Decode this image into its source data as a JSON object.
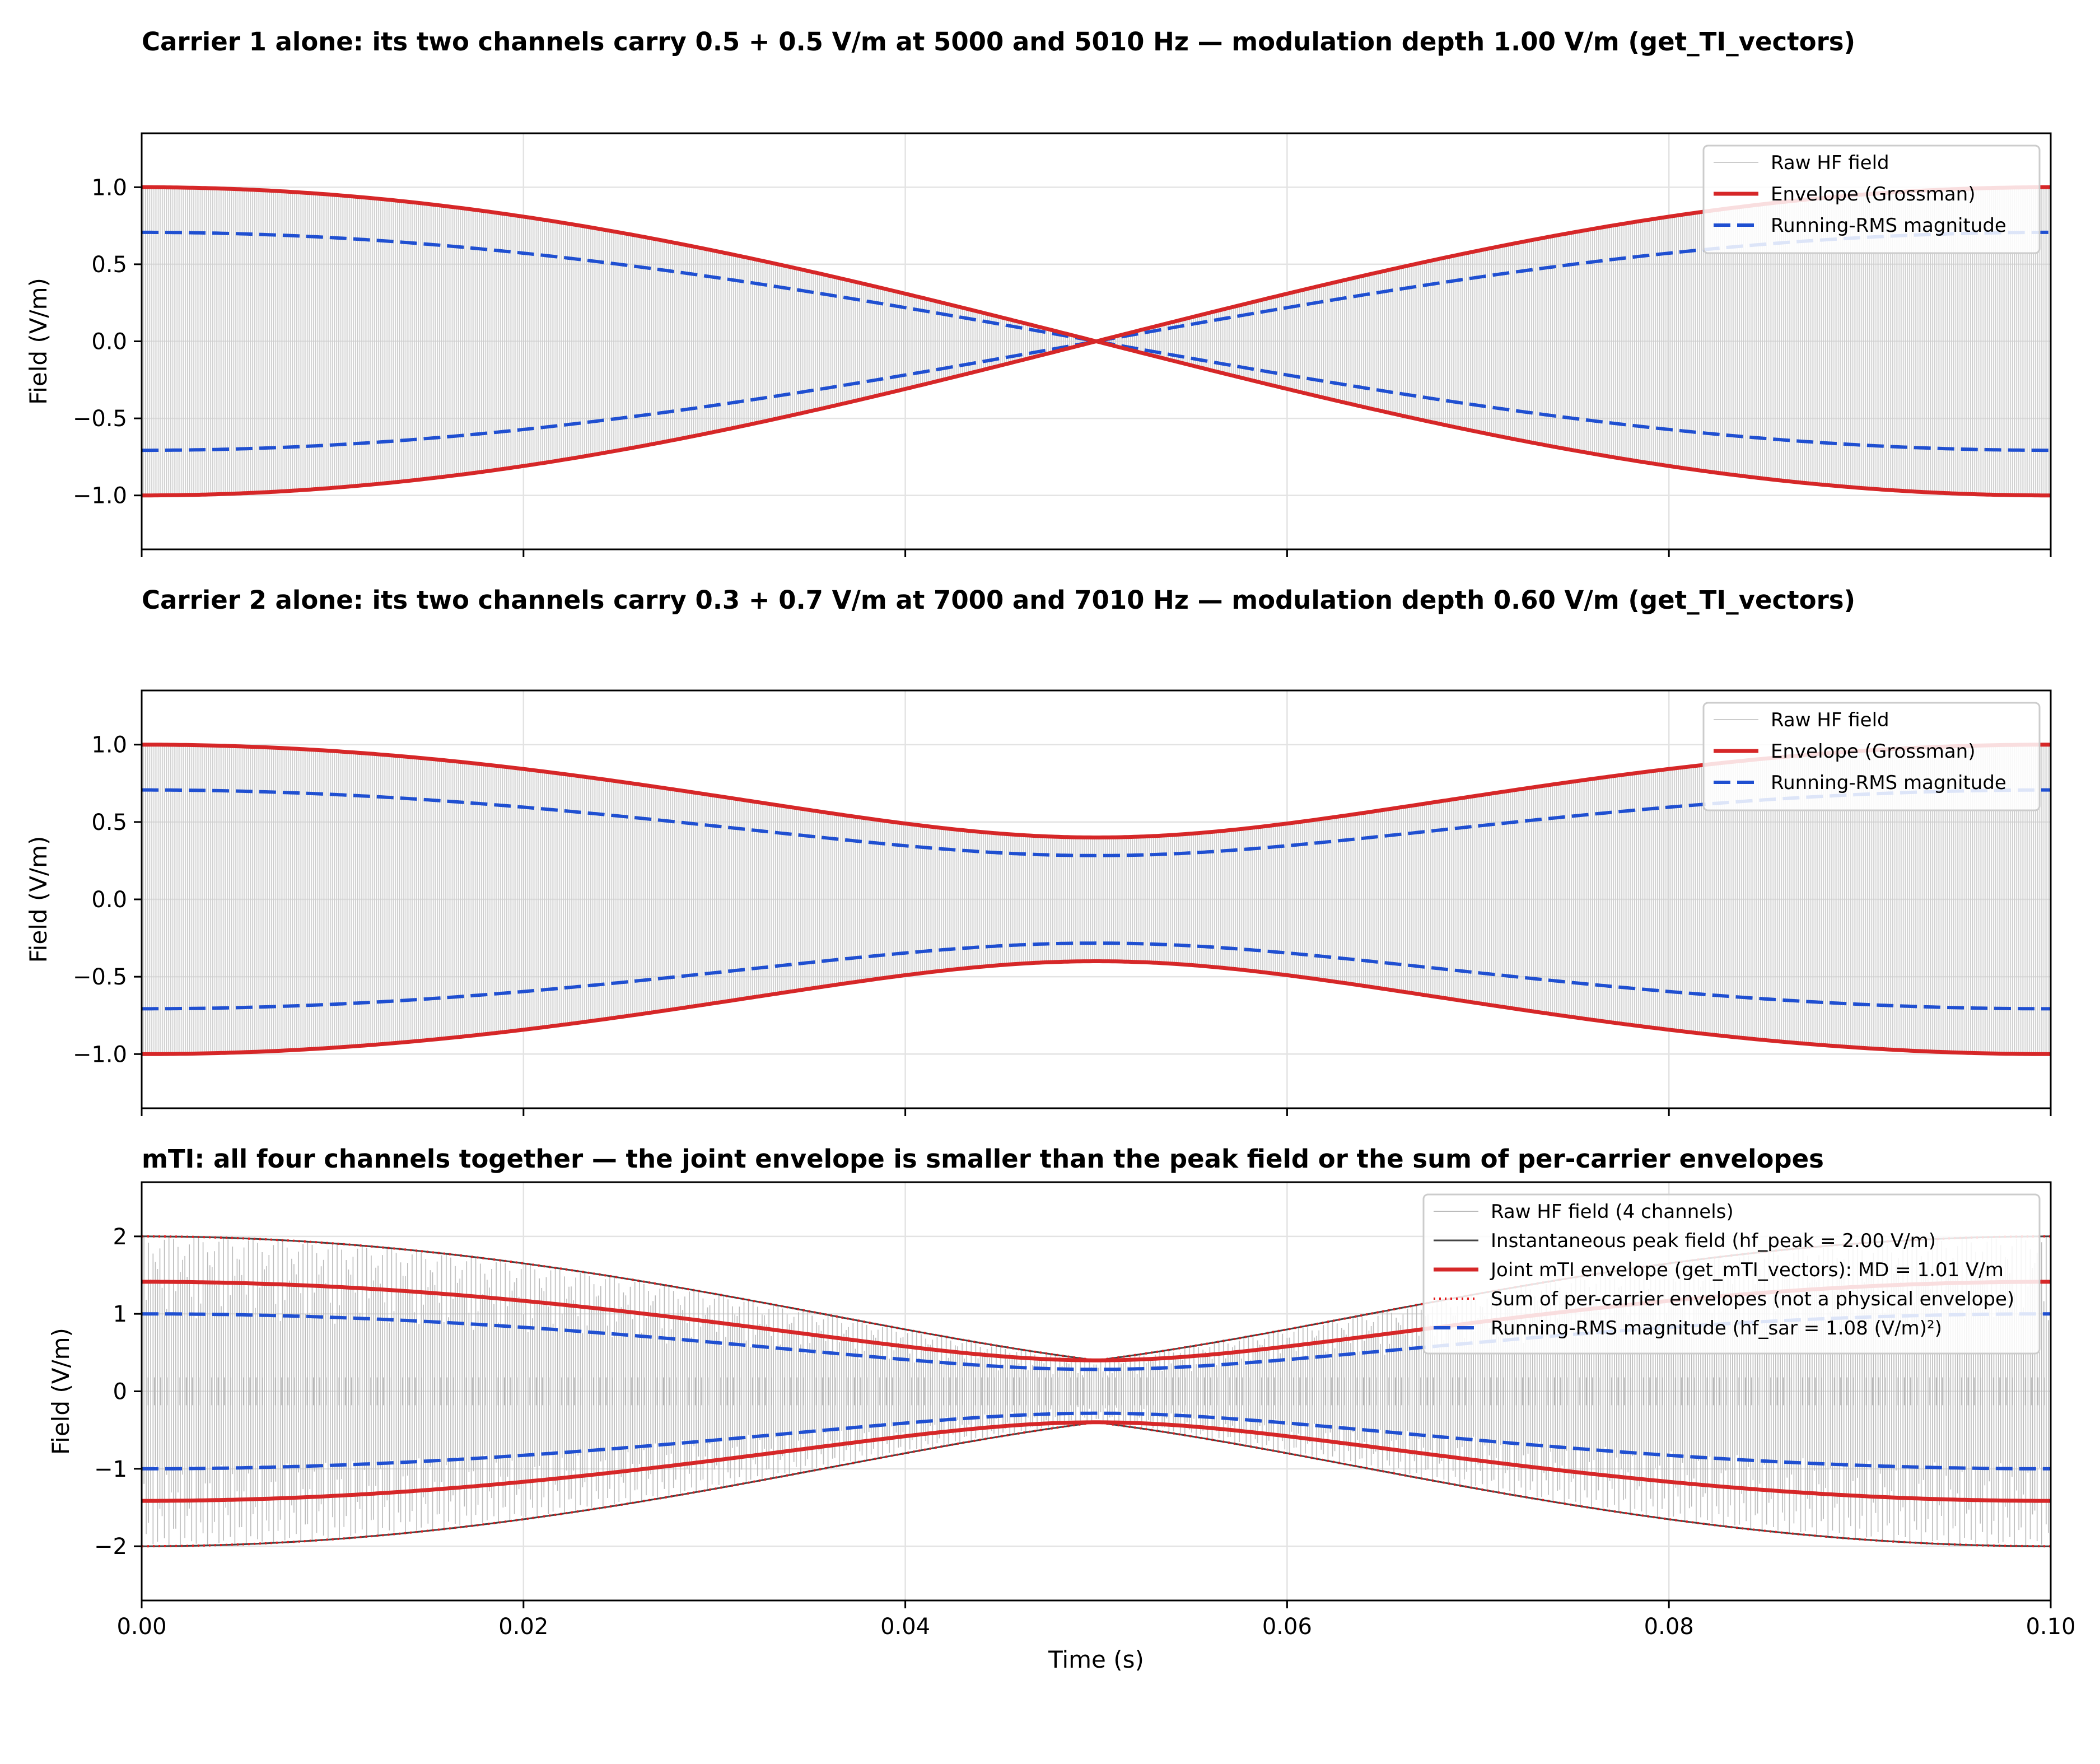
{
  "chart_data": [
    {
      "type": "line",
      "title": "Carrier 1 alone: its two channels carry 0.5 + 0.5 V/m at 5000 and 5010 Hz — modulation depth 1.00 V/m (get_TI_vectors)",
      "xlabel": "",
      "ylabel": "Field (V/m)",
      "xlim": [
        0.0,
        0.1
      ],
      "ylim": [
        -1.35,
        1.35
      ],
      "xticks": [
        0.0,
        0.02,
        0.04,
        0.06,
        0.08,
        0.1
      ],
      "yticks": [
        -1.0,
        -0.5,
        0.0,
        0.5,
        1.0
      ],
      "ytick_labels": [
        "−1.0",
        "−0.5",
        "0.0",
        "0.5",
        "1.0"
      ],
      "grid": true,
      "legend_position": "top-right",
      "carriers": [
        {
          "amplitudes": [
            0.5,
            0.5
          ],
          "frequencies": [
            5000,
            5010
          ]
        }
      ],
      "series": [
        {
          "name": "Raw HF field",
          "kind": "raw",
          "color": "#cccccc"
        },
        {
          "name": "Envelope (Grossman)",
          "kind": "envelope",
          "color": "#d62728"
        },
        {
          "name": "Running-RMS magnitude",
          "kind": "rms",
          "color": "#1f4fd1"
        }
      ]
    },
    {
      "type": "line",
      "title": "Carrier 2 alone: its two channels carry 0.3 + 0.7 V/m at 7000 and 7010 Hz — modulation depth 0.60 V/m (get_TI_vectors)",
      "xlabel": "",
      "ylabel": "Field (V/m)",
      "xlim": [
        0.0,
        0.1
      ],
      "ylim": [
        -1.35,
        1.35
      ],
      "xticks": [
        0.0,
        0.02,
        0.04,
        0.06,
        0.08,
        0.1
      ],
      "yticks": [
        -1.0,
        -0.5,
        0.0,
        0.5,
        1.0
      ],
      "ytick_labels": [
        "−1.0",
        "−0.5",
        "0.0",
        "0.5",
        "1.0"
      ],
      "grid": true,
      "legend_position": "top-right",
      "carriers": [
        {
          "amplitudes": [
            0.3,
            0.7
          ],
          "frequencies": [
            7000,
            7010
          ]
        }
      ],
      "series": [
        {
          "name": "Raw HF field",
          "kind": "raw",
          "color": "#cccccc"
        },
        {
          "name": "Envelope (Grossman)",
          "kind": "envelope",
          "color": "#d62728"
        },
        {
          "name": "Running-RMS magnitude",
          "kind": "rms",
          "color": "#1f4fd1"
        }
      ]
    },
    {
      "type": "line",
      "title": "mTI: all four channels together — the joint envelope is smaller than the peak field or the sum of per-carrier envelopes",
      "xlabel": "Time (s)",
      "ylabel": "Field (V/m)",
      "xlim": [
        0.0,
        0.1
      ],
      "ylim": [
        -2.7,
        2.7
      ],
      "xticks": [
        0.0,
        0.02,
        0.04,
        0.06,
        0.08,
        0.1
      ],
      "xtick_labels": [
        "0.00",
        "0.02",
        "0.04",
        "0.06",
        "0.08",
        "0.10"
      ],
      "yticks": [
        -2,
        -1,
        0,
        1,
        2
      ],
      "ytick_labels": [
        "−2",
        "−1",
        "0",
        "1",
        "2"
      ],
      "grid": true,
      "legend_position": "top-right",
      "carriers": [
        {
          "amplitudes": [
            0.5,
            0.5
          ],
          "frequencies": [
            5000,
            5010
          ]
        },
        {
          "amplitudes": [
            0.3,
            0.7
          ],
          "frequencies": [
            7000,
            7010
          ]
        }
      ],
      "hf_peak": 2.0,
      "hf_sar": 1.08,
      "modulation_depth": 1.01,
      "series": [
        {
          "name": "Raw HF field (4 channels)",
          "kind": "raw",
          "color": "#bbbbbb"
        },
        {
          "name": "Instantaneous peak field (hf_peak = 2.00 V/m)",
          "kind": "peak",
          "color": "#444444"
        },
        {
          "name": "Joint mTI envelope (get_mTI_vectors): MD = 1.01 V/m",
          "kind": "joint",
          "color": "#d62728"
        },
        {
          "name": "Sum of per-carrier envelopes (not a physical envelope)",
          "kind": "sum",
          "color": "#e41a1c"
        },
        {
          "name": "Running-RMS magnitude (hf_sar = 1.08 (V/m)²)",
          "kind": "rms",
          "color": "#1f4fd1"
        }
      ]
    }
  ]
}
